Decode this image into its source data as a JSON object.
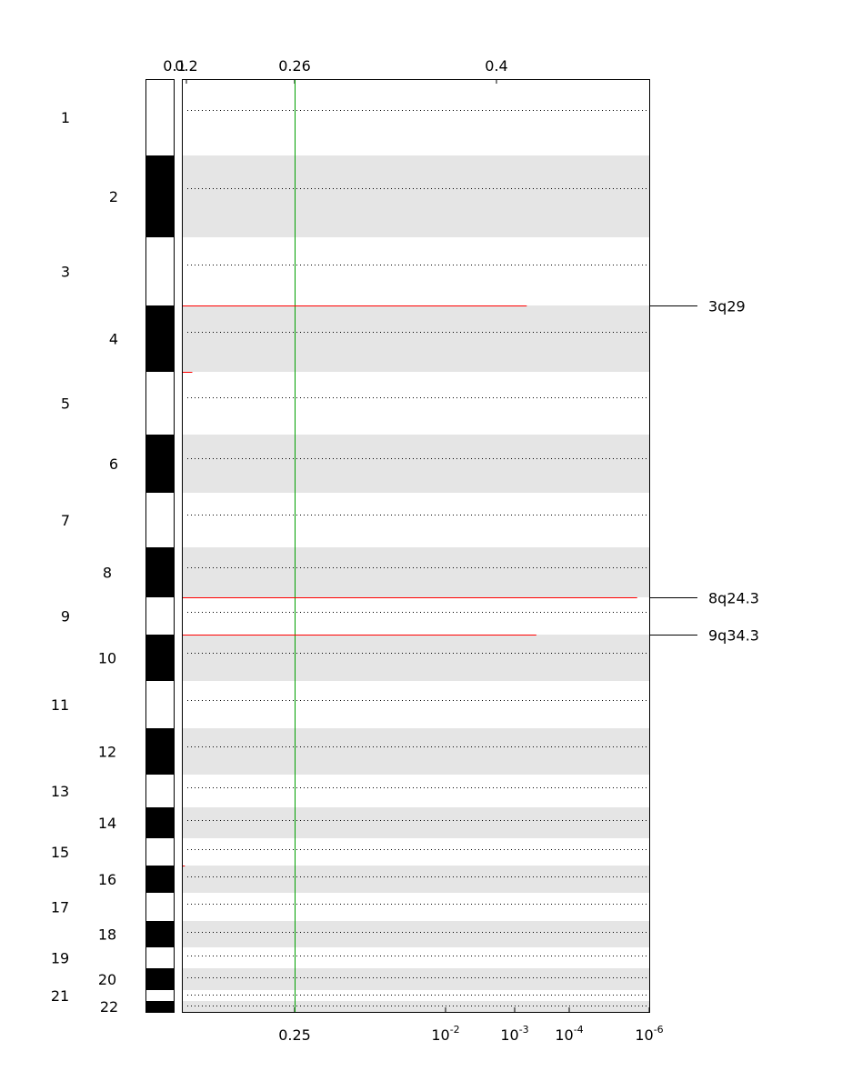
{
  "chart_data": {
    "type": "bar",
    "orientation": "horizontal",
    "title": "",
    "xlabel": "",
    "ylabel": "",
    "chromosomes": [
      "1",
      "2",
      "3",
      "4",
      "5",
      "6",
      "7",
      "8",
      "9",
      "10",
      "11",
      "12",
      "13",
      "14",
      "15",
      "16",
      "17",
      "18",
      "19",
      "20",
      "21",
      "22"
    ],
    "top_axis": {
      "ticks": [
        "0.1",
        "0.2",
        "0.26",
        "0.4"
      ]
    },
    "bottom_axis": {
      "ticks": [
        {
          "base": "0.25",
          "exp": ""
        },
        {
          "base": "10",
          "exp": "-2"
        },
        {
          "base": "10",
          "exp": "-3"
        },
        {
          "base": "10",
          "exp": "-4"
        },
        {
          "base": "10",
          "exp": "-6"
        }
      ]
    },
    "threshold": {
      "value": 0.25,
      "color": "#00a000"
    },
    "series": [
      {
        "color": "#ff0000",
        "peaks": [
          {
            "chromosome": "3",
            "q_value": 0.0006,
            "label": "3q29"
          },
          {
            "chromosome": "4",
            "q_value": 0.93,
            "label": ""
          },
          {
            "chromosome": "8",
            "q_value": 2e-06,
            "label": "8q24.3"
          },
          {
            "chromosome": "9",
            "q_value": 0.0004,
            "label": "9q34.3"
          },
          {
            "chromosome": "15",
            "q_value": 0.98,
            "label": ""
          }
        ]
      }
    ],
    "grid": true,
    "band_colors": {
      "light": "#ffffff",
      "dark": "#e5e5e5",
      "ideogram_dark": "#000000"
    }
  }
}
